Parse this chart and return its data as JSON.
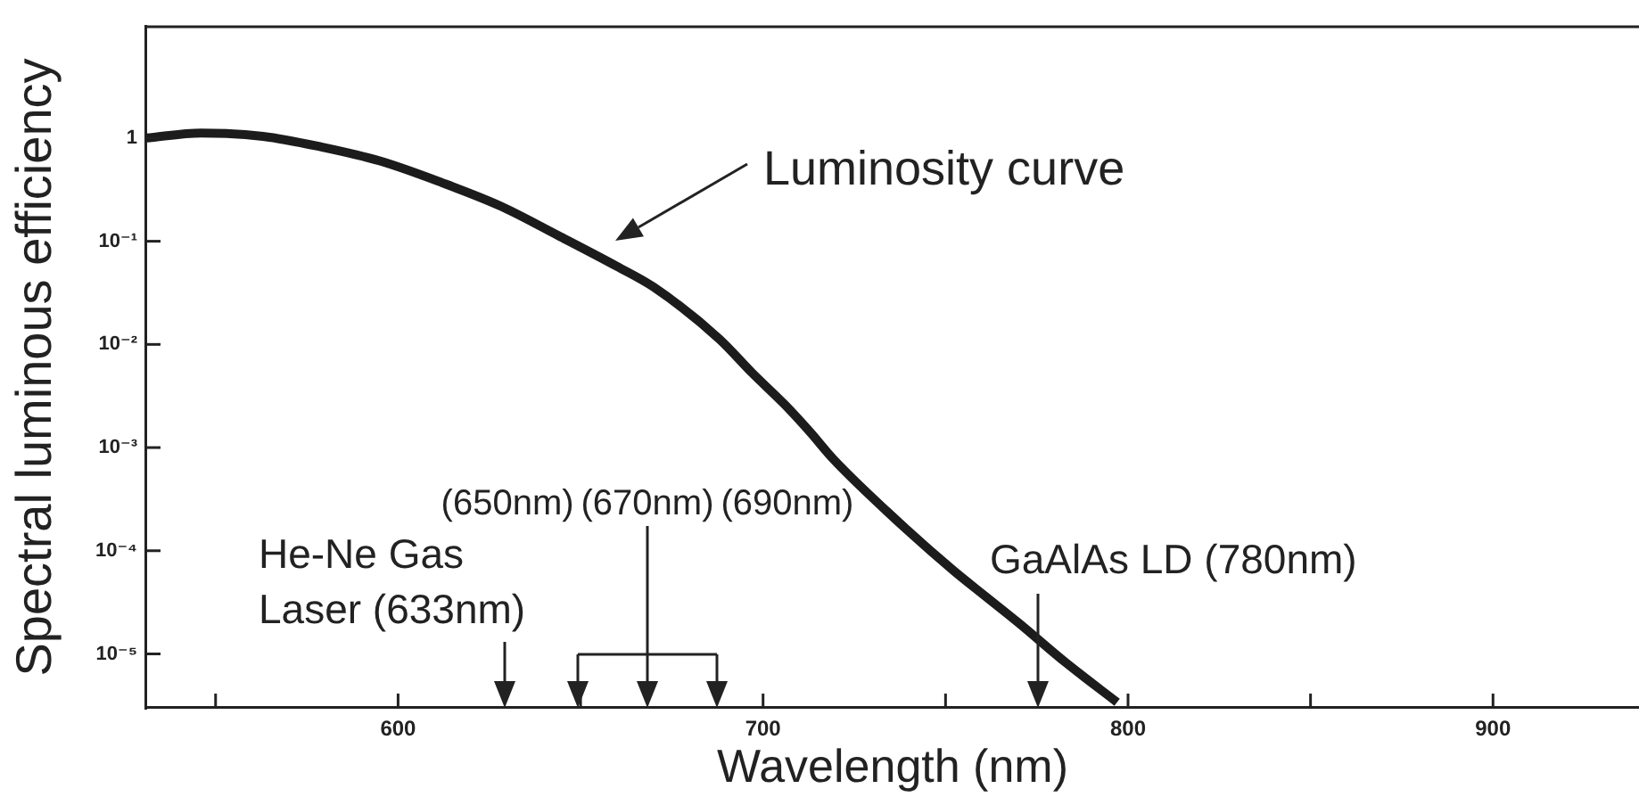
{
  "chart_data": {
    "type": "line",
    "xlabel": "Wavelength (nm)",
    "ylabel": "Spectral luminous efficiency",
    "x": [
      531,
      546,
      563,
      579,
      595,
      612,
      628,
      644,
      660,
      670,
      688,
      697,
      706,
      713,
      719,
      734,
      752,
      761,
      770,
      783,
      797
    ],
    "values": [
      1.0,
      1.12,
      1.04,
      0.82,
      0.6,
      0.37,
      0.22,
      0.113,
      0.057,
      0.036,
      0.0113,
      0.0053,
      0.0026,
      0.0014,
      0.00079,
      0.00024,
      6.5e-05,
      3.6e-05,
      2e-05,
      8.2e-06,
      3.4e-06
    ],
    "color": "#1c1c1c",
    "line_style": "solid",
    "marker": "none",
    "log": "y",
    "grid": false,
    "xlim": [
      531,
      940
    ],
    "xticks": [
      {
        "value": 550,
        "label": null
      },
      600,
      {
        "value": 650,
        "label": null
      },
      700,
      {
        "value": 750,
        "label": null
      },
      800,
      {
        "value": 850,
        "label": null
      },
      900
    ],
    "ylim": [
      3e-06,
      12
    ],
    "yticks": [
      {
        "value": 1e-05,
        "label": "10⁻⁵"
      },
      {
        "value": 0.0001,
        "label": "10⁻⁴"
      },
      {
        "value": 0.001,
        "label": "10⁻³"
      },
      {
        "value": 0.01,
        "label": "10⁻²"
      },
      {
        "value": 0.1,
        "label": "10⁻¹"
      },
      1
    ],
    "annotations": [
      "Luminosity curve",
      "He-Ne Gas Laser (633nm)",
      "(650nm)",
      "(670nm)",
      "(690nm)",
      "GaAlAs LD (780nm)"
    ]
  }
}
